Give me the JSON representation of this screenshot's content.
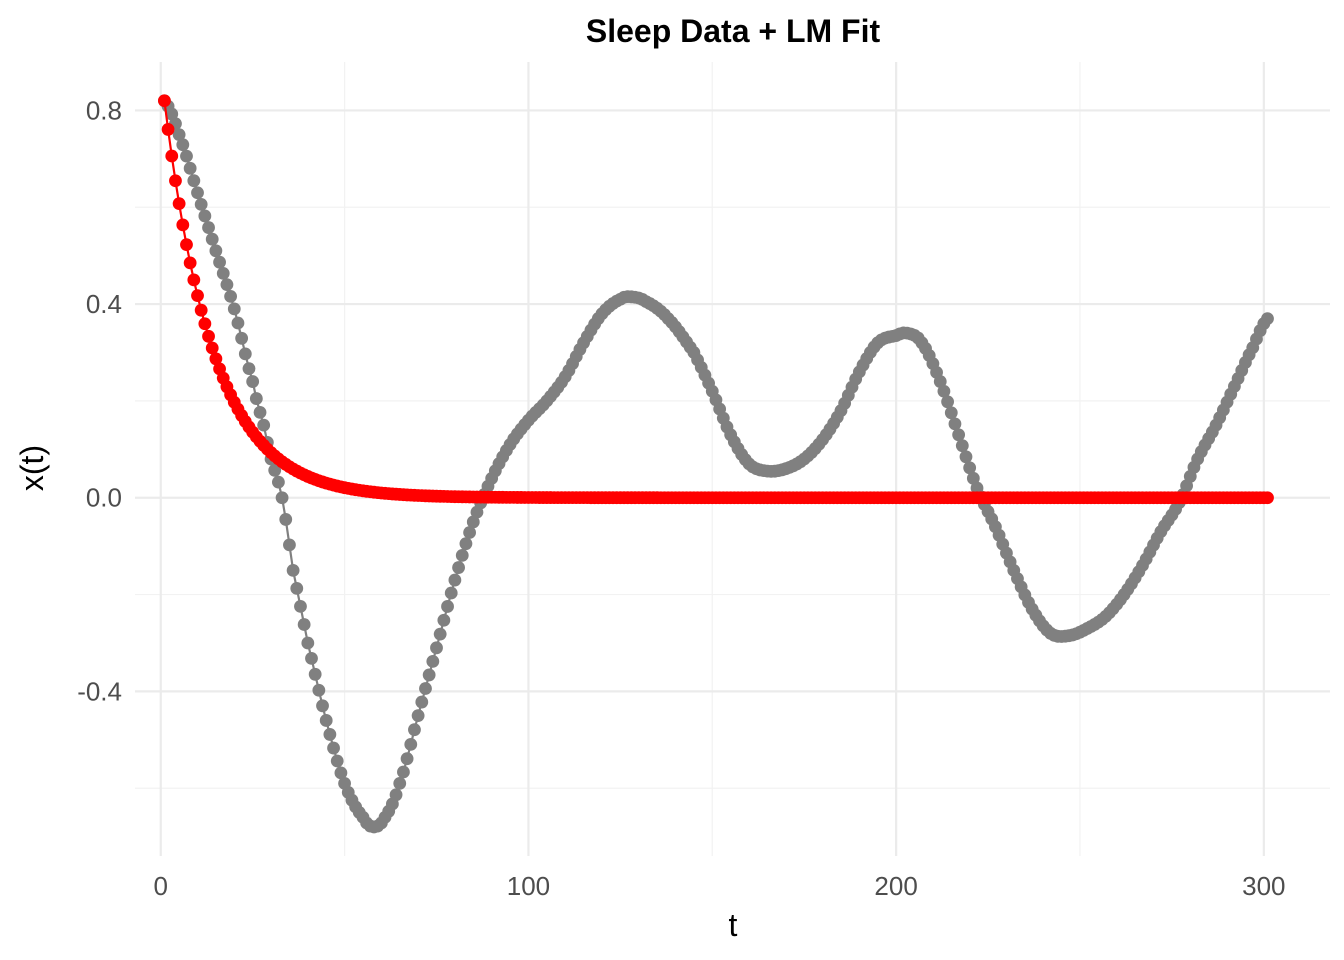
{
  "chart_data": {
    "type": "scatter",
    "title": "Sleep Data + LM Fit",
    "xlabel": "t",
    "ylabel": "x(t)",
    "xlim": [
      -7,
      318
    ],
    "ylim": [
      -0.74,
      0.9
    ],
    "x_ticks": [
      0,
      100,
      200,
      300
    ],
    "x_tick_labels": [
      "0",
      "100",
      "200",
      "300"
    ],
    "y_ticks": [
      -0.4,
      0.0,
      0.4,
      0.8
    ],
    "y_tick_labels": [
      "-0.4",
      "0.0",
      "0.4",
      "0.8"
    ],
    "grid": true,
    "x_range": [
      1,
      301
    ],
    "series": [
      {
        "color": "#808080",
        "style": "line+points",
        "knots": [
          [
            1,
            0.82
          ],
          [
            5,
            0.75
          ],
          [
            10,
            0.63
          ],
          [
            15,
            0.51
          ],
          [
            20,
            0.39
          ],
          [
            25,
            0.24
          ],
          [
            28,
            0.15
          ],
          [
            30,
            0.08
          ],
          [
            33,
            0.0
          ],
          [
            36,
            -0.15
          ],
          [
            40,
            -0.3
          ],
          [
            45,
            -0.46
          ],
          [
            50,
            -0.59
          ],
          [
            55,
            -0.66
          ],
          [
            58,
            -0.68
          ],
          [
            61,
            -0.66
          ],
          [
            65,
            -0.59
          ],
          [
            70,
            -0.45
          ],
          [
            75,
            -0.31
          ],
          [
            80,
            -0.17
          ],
          [
            85,
            -0.05
          ],
          [
            90,
            0.04
          ],
          [
            95,
            0.11
          ],
          [
            100,
            0.16
          ],
          [
            105,
            0.2
          ],
          [
            110,
            0.25
          ],
          [
            115,
            0.32
          ],
          [
            120,
            0.38
          ],
          [
            125,
            0.41
          ],
          [
            128,
            0.415
          ],
          [
            132,
            0.405
          ],
          [
            138,
            0.37
          ],
          [
            145,
            0.3
          ],
          [
            150,
            0.22
          ],
          [
            155,
            0.13
          ],
          [
            160,
            0.07
          ],
          [
            165,
            0.055
          ],
          [
            170,
            0.06
          ],
          [
            175,
            0.08
          ],
          [
            180,
            0.12
          ],
          [
            185,
            0.18
          ],
          [
            190,
            0.26
          ],
          [
            195,
            0.32
          ],
          [
            200,
            0.335
          ],
          [
            203,
            0.34
          ],
          [
            207,
            0.32
          ],
          [
            212,
            0.24
          ],
          [
            217,
            0.13
          ],
          [
            222,
            0.02
          ],
          [
            227,
            -0.06
          ],
          [
            232,
            -0.15
          ],
          [
            237,
            -0.23
          ],
          [
            242,
            -0.28
          ],
          [
            247,
            -0.285
          ],
          [
            252,
            -0.27
          ],
          [
            257,
            -0.245
          ],
          [
            262,
            -0.2
          ],
          [
            267,
            -0.14
          ],
          [
            272,
            -0.07
          ],
          [
            277,
            -0.01
          ],
          [
            282,
            0.08
          ],
          [
            287,
            0.15
          ],
          [
            292,
            0.23
          ],
          [
            297,
            0.31
          ],
          [
            301,
            0.37
          ]
        ]
      },
      {
        "color": "#ff0000",
        "style": "line+points",
        "model": "exponential decay",
        "formula": "x(t) = 0.82 * exp(-0.075 * (t - 1))",
        "a": 0.82,
        "k": 0.075,
        "t0": 1
      }
    ]
  }
}
